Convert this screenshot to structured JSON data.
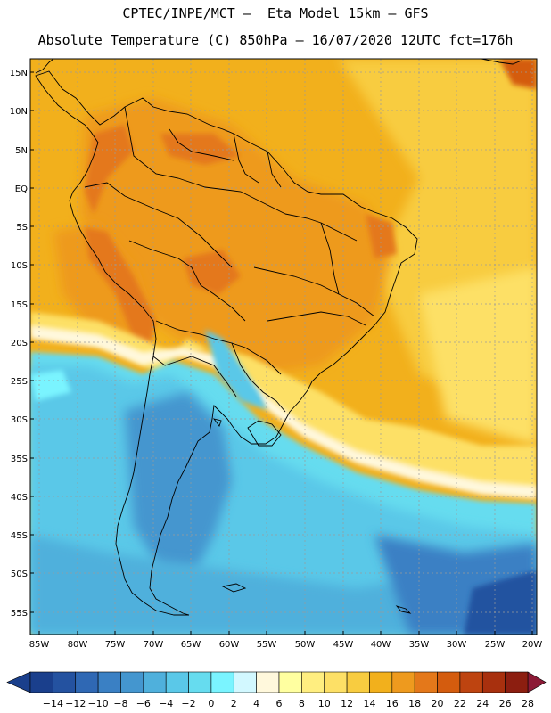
{
  "header": {
    "title_line1": "CPTEC/INPE/MCT –  Eta Model 15km – GFS",
    "title_line2": "Absolute Temperature (C) 850hPa – 16/07/2020 12UTC fct=176h"
  },
  "axes": {
    "lat_labels": [
      "15N",
      "10N",
      "5N",
      "EQ",
      "5S",
      "10S",
      "15S",
      "20S",
      "25S",
      "30S",
      "35S",
      "40S",
      "45S",
      "50S",
      "55S"
    ],
    "lon_labels": [
      "85W",
      "80W",
      "75W",
      "70W",
      "65W",
      "60W",
      "55W",
      "50W",
      "45W",
      "40W",
      "35W",
      "30W",
      "25W",
      "20W"
    ]
  },
  "colorbar": {
    "labels": [
      "-14",
      "-12",
      "-10",
      "-8",
      "-6",
      "-4",
      "-2",
      "0",
      "2",
      "4",
      "6",
      "8",
      "10",
      "12",
      "14",
      "16",
      "18",
      "20",
      "22",
      "24",
      "26",
      "28"
    ],
    "colors": [
      "#1a3f8c",
      "#2452a0",
      "#2f68b4",
      "#3a80c4",
      "#4496cf",
      "#4fb0dc",
      "#5ac8e8",
      "#66dcef",
      "#7af4ff",
      "#d2f8ff",
      "#fff8dc",
      "#ffffa0",
      "#ffee80",
      "#fde066",
      "#f8cc40",
      "#f2b01c",
      "#ee9a1e",
      "#e4781a",
      "#d45c0e",
      "#be4410",
      "#a8300e",
      "#8c1e10"
    ],
    "under_color": "#1a3f8c",
    "over_color": "#8c1a36"
  }
}
